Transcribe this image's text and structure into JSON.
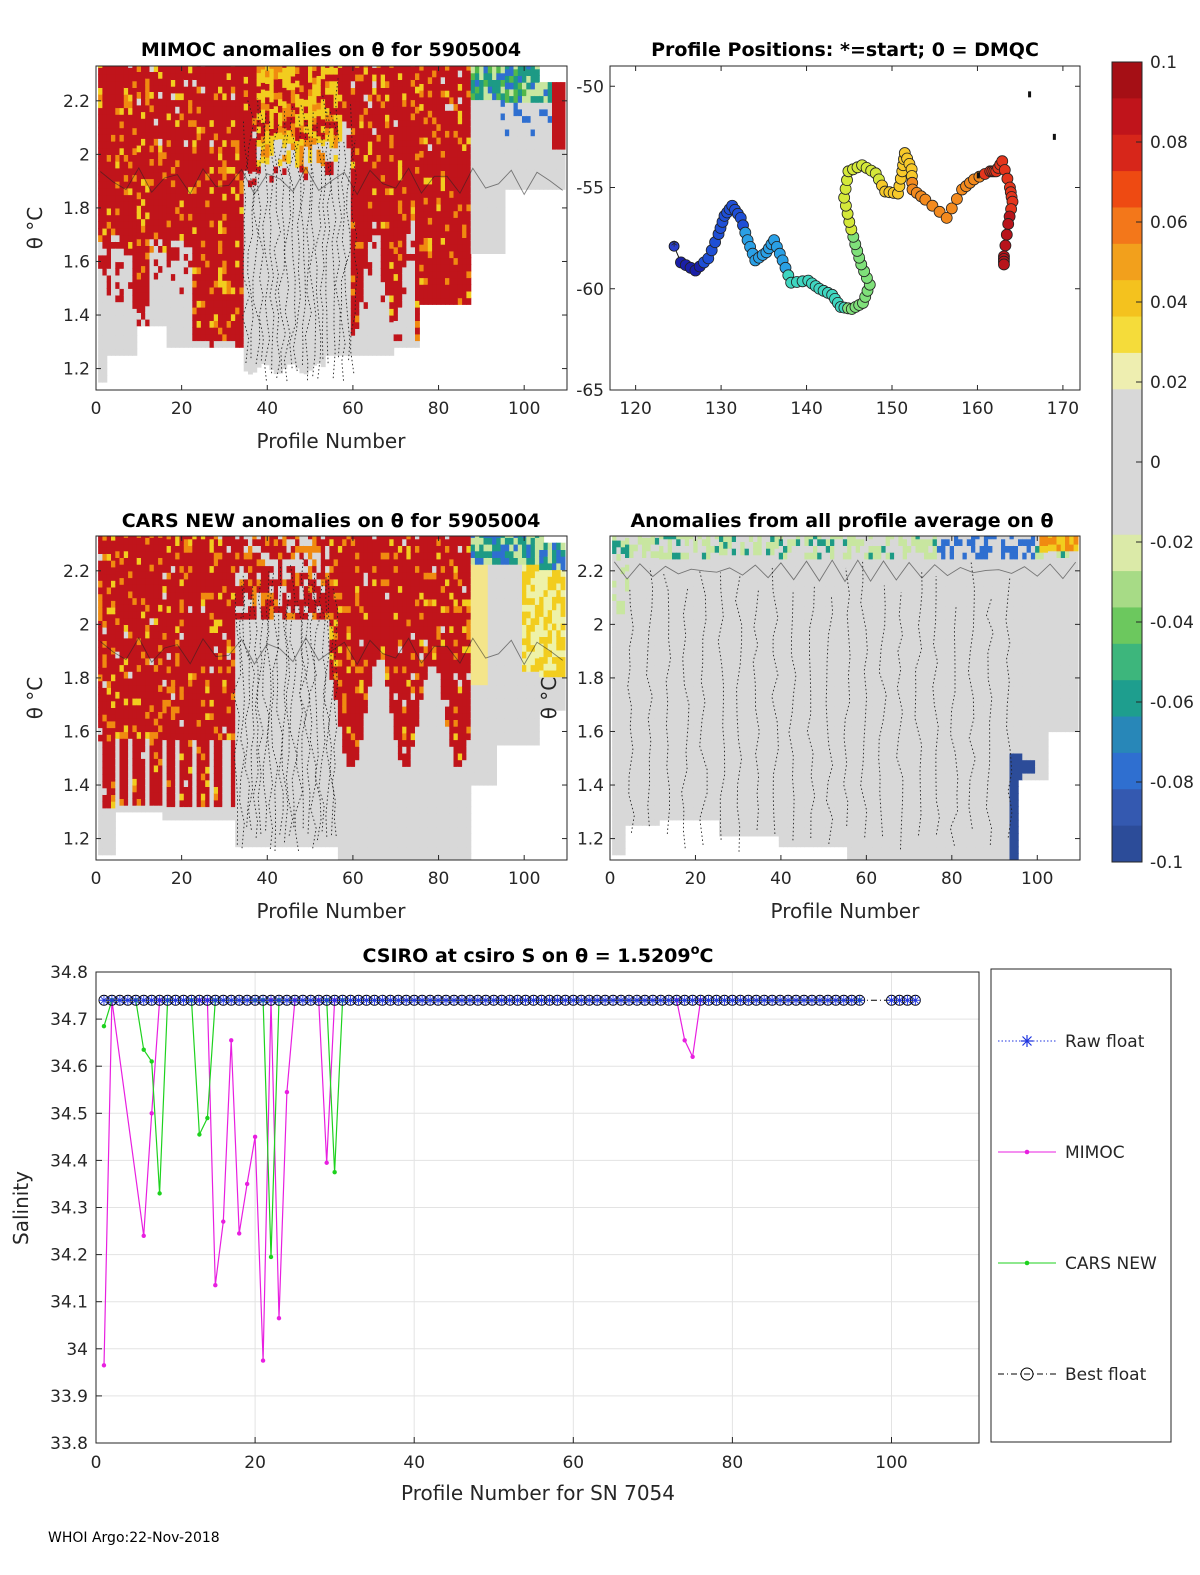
{
  "footer": "WHOI Argo:22-Nov-2018",
  "colorbar": {
    "ticks": [
      "0.1",
      "0.08",
      "0.06",
      "0.04",
      "0.02",
      "0",
      "-0.02",
      "-0.04",
      "-0.06",
      "-0.08",
      "-0.1"
    ],
    "colors": [
      "#c0141b",
      "#f04d0f",
      "#f2a01c",
      "#f4d21c",
      "#d8d8d8",
      "#d8d8d8",
      "#c8e6a0",
      "#52b84a",
      "#1d9a85",
      "#2f6fd0",
      "#2c4c99"
    ]
  },
  "panels": {
    "mimoc": {
      "title": "MIMOC anomalies on θ  for 5905004",
      "xlabel": "Profile Number",
      "ylabel": "θ °C",
      "xticks": [
        "0",
        "20",
        "40",
        "60",
        "80",
        "100"
      ],
      "yticks": [
        "1.2",
        "1.4",
        "1.6",
        "1.8",
        "2",
        "2.2"
      ]
    },
    "positions": {
      "title": "Profile Positions: *=start; 0 = DMQC",
      "xticks": [
        "120",
        "130",
        "140",
        "150",
        "160",
        "170"
      ],
      "yticks": [
        "-50",
        "-55",
        "-60",
        "-65"
      ]
    },
    "cars": {
      "title": "CARS NEW anomalies on θ for 5905004",
      "xlabel": "Profile Number",
      "ylabel": "θ °C",
      "xticks": [
        "0",
        "20",
        "40",
        "60",
        "80",
        "100"
      ],
      "yticks": [
        "1.2",
        "1.4",
        "1.6",
        "1.8",
        "2",
        "2.2"
      ]
    },
    "avg": {
      "title": "Anomalies from all profile average on θ",
      "xlabel": "Profile Number",
      "ylabel": "θ °C",
      "xticks": [
        "0",
        "20",
        "40",
        "60",
        "80",
        "100"
      ],
      "yticks": [
        "1.2",
        "1.4",
        "1.6",
        "1.8",
        "2",
        "2.2"
      ]
    },
    "salinity": {
      "title_main": "CSIRO at csiro S on θ = 1.5209",
      "title_sup": "o",
      "title_end": "C",
      "xlabel": "Profile Number for SN 7054",
      "ylabel": "Salinity",
      "xticks": [
        "0",
        "20",
        "40",
        "60",
        "80",
        "100"
      ],
      "yticks": [
        "34.8",
        "34.7",
        "34.6",
        "34.5",
        "34.4",
        "34.3",
        "34.2",
        "34.1",
        "34",
        "33.9",
        "33.8"
      ]
    }
  },
  "legend": [
    "Raw float",
    "MIMOC",
    "CARS NEW",
    "Best float"
  ],
  "chart_data": [
    {
      "type": "heatmap",
      "title": "MIMOC anomalies on θ for 5905004",
      "xlabel": "Profile Number",
      "ylabel": "θ °C",
      "xlim": [
        0,
        110
      ],
      "ylim": [
        1.12,
        2.33
      ],
      "note": "positive anomalies (~+0.1) for profiles 0-35 and 60-88; near zero profiles 35-60; negative near-surface values profiles 88-110"
    },
    {
      "type": "scatter",
      "title": "Profile Positions: *=start; 0 = DMQC",
      "xlim": [
        117,
        172
      ],
      "ylim": [
        -65,
        -49
      ],
      "start": [
        124.5,
        -57.9
      ],
      "track": [
        [
          124.5,
          -57.9
        ],
        [
          125.3,
          -58.7
        ],
        [
          127,
          -59.1
        ],
        [
          128.5,
          -58.5
        ],
        [
          129.7,
          -57.3
        ],
        [
          130.4,
          -56.4
        ],
        [
          131.3,
          -55.9
        ],
        [
          132.3,
          -56.5
        ],
        [
          133.1,
          -57.6
        ],
        [
          134,
          -58.6
        ],
        [
          135.3,
          -58.2
        ],
        [
          136.2,
          -57.6
        ],
        [
          137.2,
          -58.6
        ],
        [
          138.2,
          -59.7
        ],
        [
          140.2,
          -59.6
        ],
        [
          141.5,
          -60
        ],
        [
          143,
          -60.3
        ],
        [
          144,
          -60.9
        ],
        [
          145.3,
          -61
        ],
        [
          146.6,
          -60.7
        ],
        [
          147.4,
          -59.8
        ],
        [
          146.4,
          -58.8
        ],
        [
          145.7,
          -57.8
        ],
        [
          145,
          -56.7
        ],
        [
          144.4,
          -55.5
        ],
        [
          144.9,
          -54.2
        ],
        [
          146.5,
          -53.9
        ],
        [
          148.1,
          -54.3
        ],
        [
          149.2,
          -55.2
        ],
        [
          150.7,
          -55.3
        ],
        [
          151.2,
          -54.2
        ],
        [
          151.5,
          -53.3
        ],
        [
          152.3,
          -54.1
        ],
        [
          152.4,
          -55.1
        ],
        [
          153.9,
          -55.6
        ],
        [
          156.4,
          -56.5
        ],
        [
          158.2,
          -55.1
        ],
        [
          159.6,
          -54.6
        ],
        [
          161.5,
          -54.2
        ],
        [
          162.2,
          -54.2
        ],
        [
          162.9,
          -53.7
        ],
        [
          163.8,
          -55
        ],
        [
          164.1,
          -55.7
        ],
        [
          163.6,
          -56.8
        ],
        [
          163.1,
          -58.4
        ],
        [
          163.1,
          -58.8
        ]
      ],
      "extra_points": [
        [
          166.1,
          -50.4
        ],
        [
          169,
          -52.5
        ],
        [
          160.1,
          -54.4
        ]
      ]
    },
    {
      "type": "heatmap",
      "title": "CARS NEW anomalies on θ for 5905004",
      "xlabel": "Profile Number",
      "ylabel": "θ °C",
      "xlim": [
        0,
        110
      ],
      "ylim": [
        1.12,
        2.33
      ],
      "note": "positive anomalies profiles 0-33 and 55-88; near zero profiles 33-55 and deep; mixed values 88-110"
    },
    {
      "type": "heatmap",
      "title": "Anomalies from all profile average on θ",
      "xlabel": "Profile Number",
      "ylabel": "θ °C",
      "xlim": [
        0,
        110
      ],
      "ylim": [
        1.12,
        2.33
      ],
      "note": "mostly near zero; small negative patches near 2.25 °C and around profile 95"
    },
    {
      "type": "line",
      "title": "CSIRO at csiro S on θ = 1.5209°C",
      "xlabel": "Profile Number for SN 7054",
      "ylabel": "Salinity",
      "xlim": [
        0,
        111
      ],
      "ylim": [
        33.8,
        34.8
      ],
      "series": [
        {
          "name": "Raw float",
          "color": "#1f35e0",
          "x_range": [
            1,
            103
          ],
          "value": 34.74
        },
        {
          "name": "MIMOC",
          "color": "#e81fe0",
          "points": [
            [
              1,
              33.965
            ],
            [
              2,
              34.74
            ],
            [
              6,
              34.24
            ],
            [
              7,
              34.5
            ],
            [
              8,
              34.74
            ],
            [
              13,
              34.74
            ],
            [
              14,
              34.74
            ],
            [
              15,
              34.135
            ],
            [
              16,
              34.27
            ],
            [
              17,
              34.655
            ],
            [
              18,
              34.245
            ],
            [
              19,
              34.35
            ],
            [
              20,
              34.45
            ],
            [
              21,
              33.975
            ],
            [
              22,
              34.74
            ],
            [
              23,
              34.065
            ],
            [
              24,
              34.545
            ],
            [
              25,
              34.74
            ],
            [
              28,
              34.74
            ],
            [
              29,
              34.395
            ],
            [
              30,
              34.74
            ],
            [
              73,
              34.74
            ],
            [
              74,
              34.655
            ],
            [
              75,
              34.62
            ],
            [
              76,
              34.74
            ]
          ]
        },
        {
          "name": "CARS NEW",
          "color": "#1ed21e",
          "points": [
            [
              1,
              34.685
            ],
            [
              2,
              34.74
            ],
            [
              5,
              34.74
            ],
            [
              6,
              34.635
            ],
            [
              7,
              34.61
            ],
            [
              8,
              34.33
            ],
            [
              9,
              34.74
            ],
            [
              12,
              34.74
            ],
            [
              13,
              34.455
            ],
            [
              14,
              34.49
            ],
            [
              15,
              34.74
            ],
            [
              20,
              34.74
            ],
            [
              21,
              34.74
            ],
            [
              22,
              34.195
            ],
            [
              23,
              34.74
            ],
            [
              29,
              34.74
            ],
            [
              30,
              34.375
            ],
            [
              31,
              34.74
            ],
            [
              96,
              34.74
            ]
          ]
        },
        {
          "name": "Best float",
          "color": "#000000",
          "x_range": [
            1,
            103
          ],
          "value": 34.74
        }
      ]
    }
  ]
}
